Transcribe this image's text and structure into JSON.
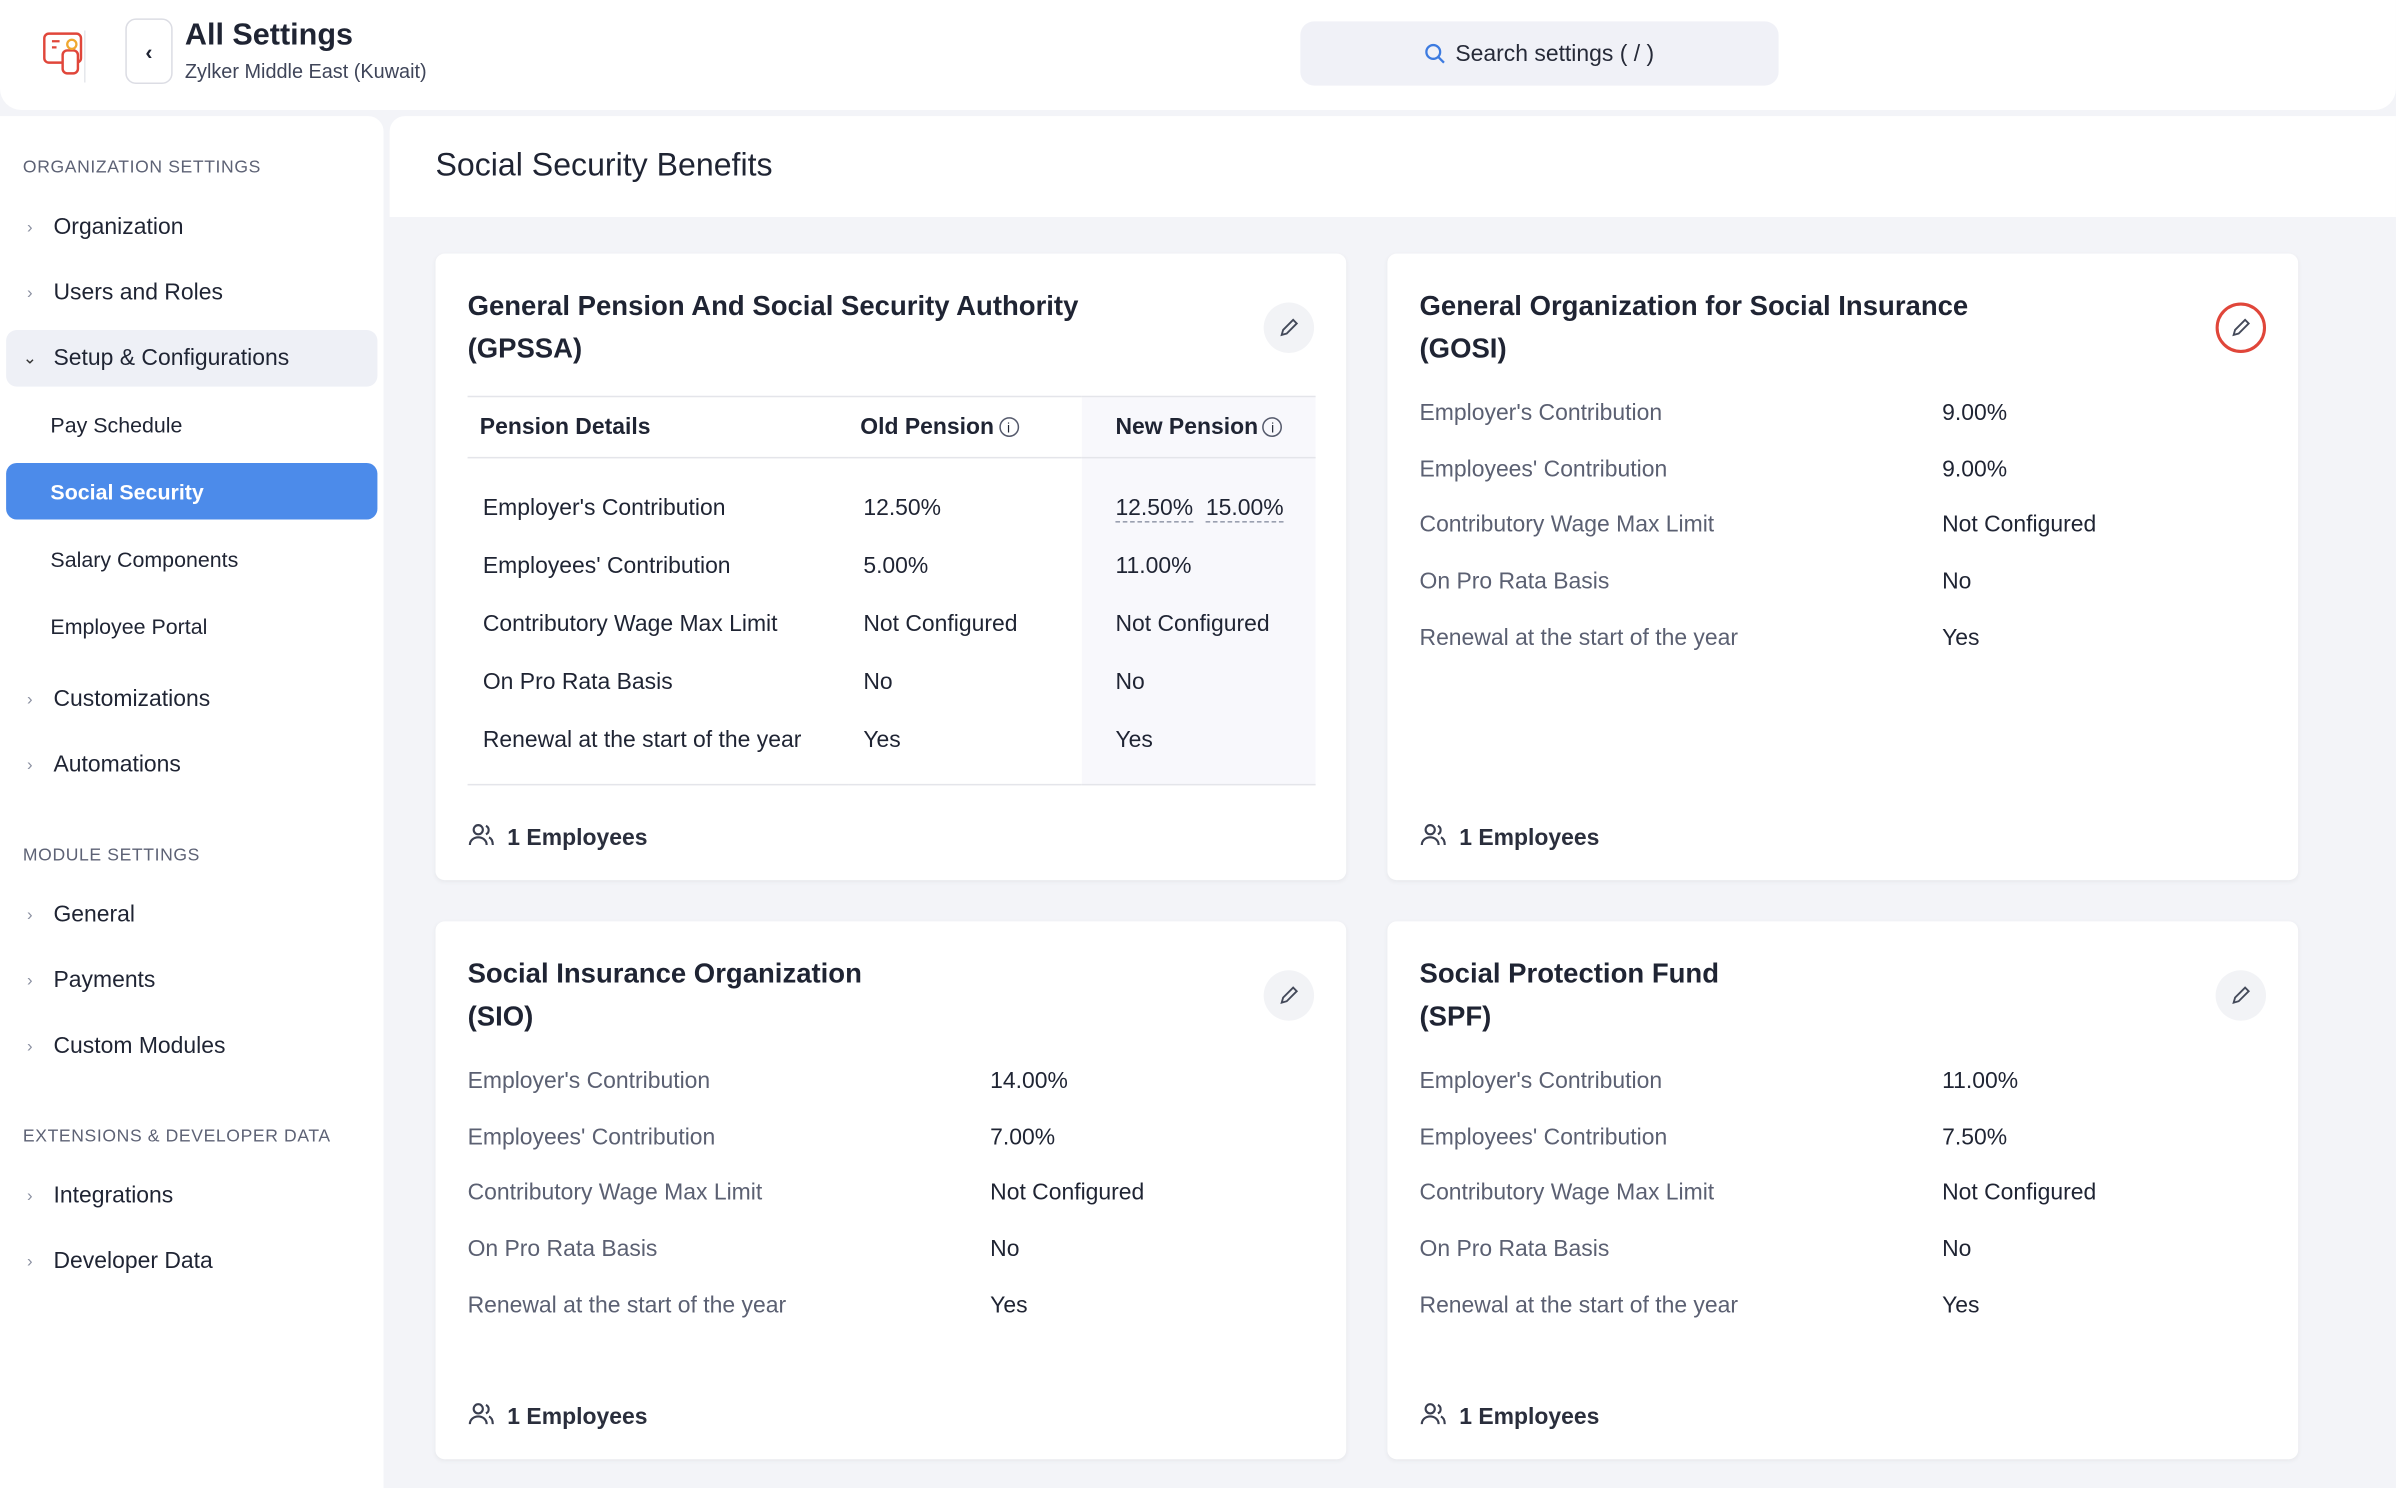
{
  "header": {
    "title": "All Settings",
    "subtitle": "Zylker Middle East (Kuwait)",
    "search_placeholder": "Search settings ( / )"
  },
  "sidebar": {
    "org_section": "ORGANIZATION SETTINGS",
    "org_items": [
      "Organization",
      "Users and Roles",
      "Setup & Configurations",
      "Customizations",
      "Automations"
    ],
    "setup_sub": [
      "Pay Schedule",
      "Social Security",
      "Salary Components",
      "Employee Portal"
    ],
    "module_section": "MODULE SETTINGS",
    "module_items": [
      "General",
      "Payments",
      "Custom Modules"
    ],
    "ext_section": "EXTENSIONS & DEVELOPER DATA",
    "ext_items": [
      "Integrations",
      "Developer Data"
    ]
  },
  "page_title": "Social Security Benefits",
  "gpssa": {
    "title_line1": "General Pension And Social Security Authority",
    "title_line2": "(GPSSA)",
    "headers": [
      "Pension Details",
      "Old Pension",
      "New Pension"
    ],
    "rows": [
      {
        "label": "Employer's Contribution",
        "old": "12.50%",
        "new_a": "12.50%",
        "new_b": "15.00%"
      },
      {
        "label": "Employees' Contribution",
        "old": "5.00%",
        "new": "11.00%"
      },
      {
        "label": "Contributory Wage Max Limit",
        "old": "Not Configured",
        "new": "Not Configured"
      },
      {
        "label": "On Pro Rata Basis",
        "old": "No",
        "new": "No"
      },
      {
        "label": "Renewal at the start of the year",
        "old": "Yes",
        "new": "Yes"
      }
    ],
    "employees": "1 Employees"
  },
  "cards": [
    {
      "title_line1": "General Organization for Social Insurance",
      "title_line2": "(GOSI)",
      "values": [
        "9.00%",
        "9.00%",
        "Not Configured",
        "No",
        "Yes"
      ],
      "employees": "1 Employees"
    },
    {
      "title_line1": "Social Insurance Organization",
      "title_line2": "(SIO)",
      "values": [
        "14.00%",
        "7.00%",
        "Not Configured",
        "No",
        "Yes"
      ],
      "employees": "1 Employees"
    },
    {
      "title_line1": "Social Protection Fund",
      "title_line2": "(SPF)",
      "values": [
        "11.00%",
        "7.50%",
        "Not Configured",
        "No",
        "Yes"
      ],
      "employees": "1 Employees"
    }
  ],
  "labels": [
    "Employer's Contribution",
    "Employees' Contribution",
    "Contributory Wage Max Limit",
    "On Pro Rata Basis",
    "Renewal at the start of the year"
  ],
  "colors": {
    "accent": "#4c8bea",
    "highlight": "#e0463a",
    "brand": "#e0463a"
  }
}
